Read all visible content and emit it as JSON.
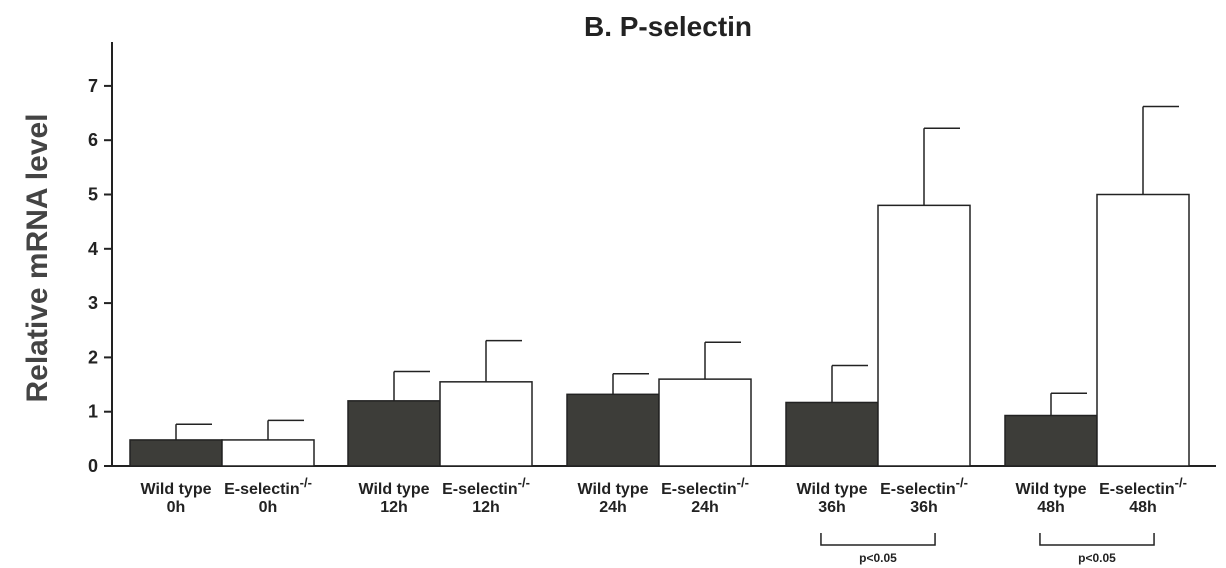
{
  "chart_data": {
    "type": "bar",
    "title": "B. P-selectin",
    "ylabel": "Relative mRNA level",
    "xlabel": "",
    "ylim": [
      0,
      7.8
    ],
    "yticks": [
      0,
      1,
      2,
      3,
      4,
      5,
      6,
      7
    ],
    "groups": [
      {
        "bars": [
          {
            "line1": "Wild type",
            "sup": "",
            "line2": "0h",
            "value": 0.48,
            "error": 0.29,
            "fill": "#3d3d39"
          },
          {
            "line1": "E-selectin",
            "sup": "-/-",
            "line2": "0h",
            "value": 0.48,
            "error": 0.36,
            "fill": "#ffffff"
          }
        ]
      },
      {
        "bars": [
          {
            "line1": "Wild type",
            "sup": "",
            "line2": "12h",
            "value": 1.2,
            "error": 0.54,
            "fill": "#3d3d39"
          },
          {
            "line1": "E-selectin",
            "sup": "-/-",
            "line2": "12h",
            "value": 1.55,
            "error": 0.76,
            "fill": "#ffffff"
          }
        ]
      },
      {
        "bars": [
          {
            "line1": "Wild type",
            "sup": "",
            "line2": "24h",
            "value": 1.32,
            "error": 0.38,
            "fill": "#3d3d39"
          },
          {
            "line1": "E-selectin",
            "sup": "-/-",
            "line2": "24h",
            "value": 1.6,
            "error": 0.68,
            "fill": "#ffffff"
          }
        ]
      },
      {
        "bars": [
          {
            "line1": "Wild type",
            "sup": "",
            "line2": "36h",
            "value": 1.17,
            "error": 0.68,
            "fill": "#3d3d39"
          },
          {
            "line1": "E-selectin",
            "sup": "-/-",
            "line2": "36h",
            "value": 4.8,
            "error": 1.42,
            "fill": "#ffffff"
          }
        ]
      },
      {
        "bars": [
          {
            "line1": "Wild type",
            "sup": "",
            "line2": "48h",
            "value": 0.93,
            "error": 0.41,
            "fill": "#3d3d39"
          },
          {
            "line1": "E-selectin",
            "sup": "-/-",
            "line2": "48h",
            "value": 5.0,
            "error": 1.62,
            "fill": "#ffffff"
          }
        ]
      }
    ],
    "annotations": [
      {
        "text": "p<0.05",
        "group": 3
      },
      {
        "text": "p<0.05",
        "group": 4
      }
    ],
    "colors": {
      "wild_type": "#3d3d39",
      "knockout": "#ffffff",
      "outline": "#222222"
    }
  }
}
